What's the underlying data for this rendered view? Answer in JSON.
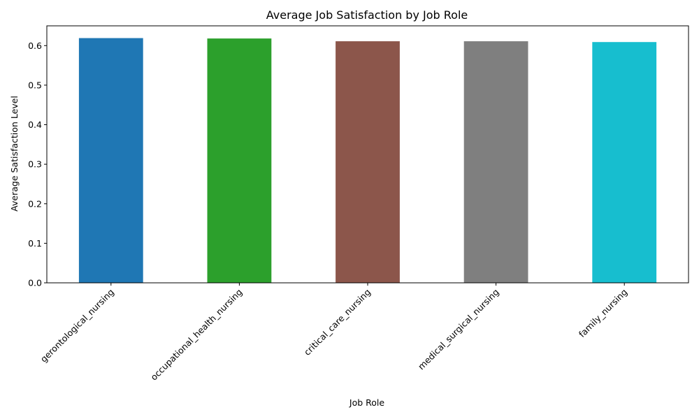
{
  "chart_data": {
    "type": "bar",
    "title": "Average Job Satisfaction by Job Role",
    "xlabel": "Job Role",
    "ylabel": "Average Satisfaction Level",
    "categories": [
      "gerontological_nursing",
      "occupational_health_nursing",
      "critical_care_nursing",
      "medical_surgical_nursing",
      "family_nursing"
    ],
    "values": [
      0.619,
      0.618,
      0.611,
      0.611,
      0.609
    ],
    "colors": [
      "#1f77b4",
      "#2ca02c",
      "#8c564b",
      "#7f7f7f",
      "#17becf"
    ],
    "ylim": [
      0,
      0.65
    ],
    "yticks": [
      0.0,
      0.1,
      0.2,
      0.3,
      0.4,
      0.5,
      0.6
    ],
    "ytick_labels": [
      "0.0",
      "0.1",
      "0.2",
      "0.3",
      "0.4",
      "0.5",
      "0.6"
    ],
    "grid": false,
    "legend": "none"
  }
}
